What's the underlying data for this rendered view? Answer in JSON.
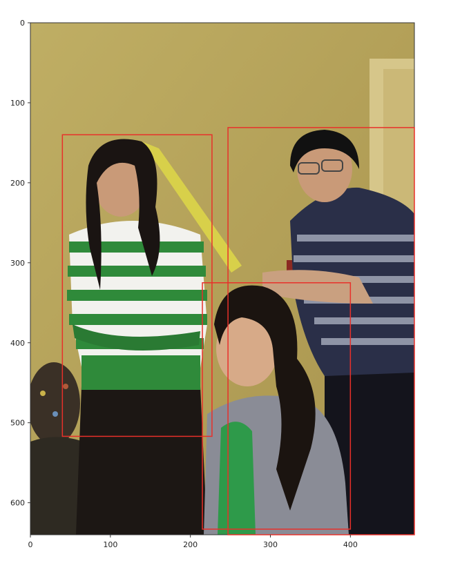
{
  "figure": {
    "image_description_icon": "photo-of-four-people-indoors",
    "colors": {
      "bbox": "#e8302a",
      "wall": "#b9a65a",
      "door": "#d9c98a",
      "green_stripe": "#2f8a3a",
      "navy_stripe": "#2a2f48",
      "gray_cardigan": "#8a8c96",
      "yellow_bat": "#d8d04a"
    }
  },
  "axes": {
    "xlim": [
      0,
      480
    ],
    "ylim": [
      640,
      0
    ],
    "x_ticks": [
      "0",
      "100",
      "200",
      "300",
      "400"
    ],
    "x_tick_values": [
      0,
      100,
      200,
      300,
      400
    ],
    "y_ticks": [
      "0",
      "100",
      "200",
      "300",
      "400",
      "500",
      "600"
    ],
    "y_tick_values": [
      0,
      100,
      200,
      300,
      400,
      500,
      600
    ]
  },
  "boxes": [
    {
      "name": "person-woman-green-sweater",
      "x0": 40,
      "y0": 140,
      "x1": 227,
      "y1": 517
    },
    {
      "name": "person-man-striped-sweater",
      "x0": 247,
      "y0": 131,
      "x1": 480,
      "y1": 640
    },
    {
      "name": "person-woman-sitting",
      "x0": 215,
      "y0": 325,
      "x1": 400,
      "y1": 633
    }
  ]
}
